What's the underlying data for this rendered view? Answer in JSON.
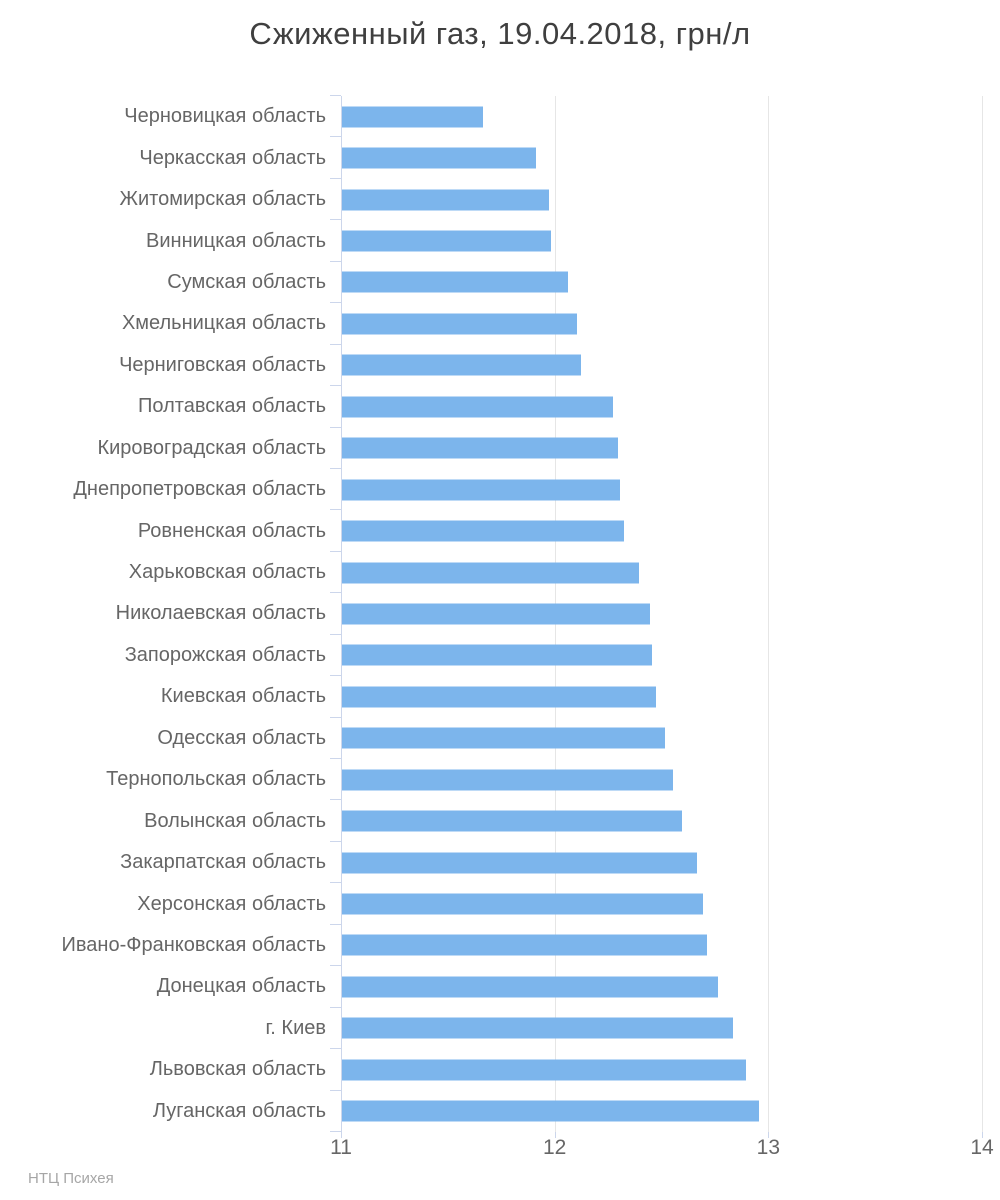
{
  "title": "Сжиженный газ, 19.04.2018, грн/л",
  "footer": {
    "source_label": "НТЦ Психея"
  },
  "colors": {
    "bar": "#7cb5ec",
    "axis_line": "#ccd6eb",
    "gridline": "#e6e6e6",
    "title_text": "#3f3f3f",
    "label_text": "#666666",
    "credit_text": "#a6a6a6",
    "background": "#ffffff"
  },
  "chart_data": {
    "type": "bar",
    "orientation": "horizontal",
    "title": "Сжиженный газ, 19.04.2018, грн/л",
    "unit": "грн/л",
    "categories": [
      "Черновицкая область",
      "Черкасская область",
      "Житомирская область",
      "Винницкая область",
      "Сумская область",
      "Хмельницкая область",
      "Черниговская область",
      "Полтавская область",
      "Кировоградская область",
      "Днепропетровская область",
      "Ровненская область",
      "Харьковская область",
      "Николаевская область",
      "Запорожская область",
      "Киевская область",
      "Одесская область",
      "Тернопольская область",
      "Волынская область",
      "Закарпатская область",
      "Херсонская область",
      "Ивано-Франковская область",
      "Донецкая область",
      "г. Киев",
      "Львовская область",
      "Луганская область"
    ],
    "values": [
      11.66,
      11.91,
      11.97,
      11.98,
      12.06,
      12.1,
      12.12,
      12.27,
      12.29,
      12.3,
      12.32,
      12.39,
      12.44,
      12.45,
      12.47,
      12.51,
      12.55,
      12.59,
      12.66,
      12.69,
      12.71,
      12.76,
      12.83,
      12.89,
      12.95
    ],
    "xlabel": "",
    "ylabel": "",
    "xlim": [
      11,
      14
    ],
    "x_ticks": [
      11,
      12,
      13,
      14
    ],
    "grid": true,
    "legend": "none"
  }
}
